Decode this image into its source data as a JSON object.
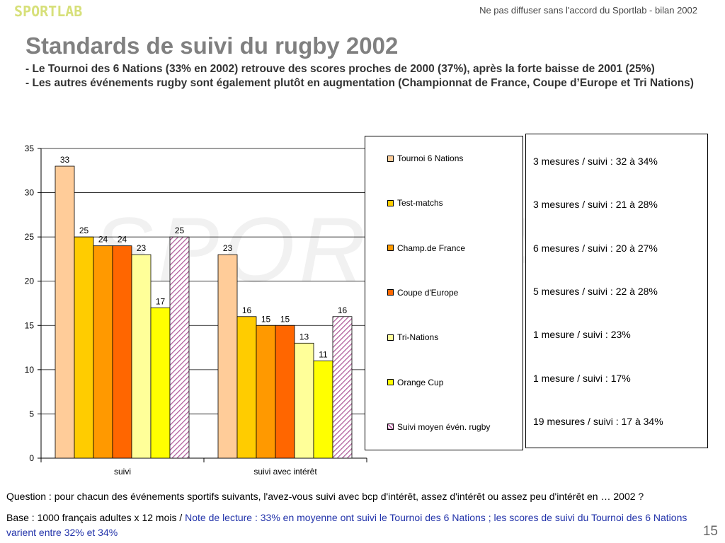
{
  "header": {
    "logo": "SPORTLAB",
    "top_note": "Ne pas diffuser sans l'accord du Sportlab - bilan 2002",
    "title": "Standards de suivi du rugby 2002",
    "subtitle": "- Le Tournoi des 6 Nations (33% en 2002) retrouve des scores proches de 2000 (37%), après la forte baisse de 2001 (25%)\n- Les autres événements rugby sont également plutôt en augmentation (Championnat de France, Coupe d’Europe et Tri Nations)"
  },
  "watermark": "SPORTLAB",
  "chart_data": {
    "type": "bar",
    "categories": [
      "suivi",
      "suivi avec intérêt"
    ],
    "series": [
      {
        "name": "Tournoi 6 Nations",
        "values": [
          33,
          23
        ],
        "color": "#ffcc99"
      },
      {
        "name": "Test-matchs",
        "values": [
          25,
          16
        ],
        "color": "#ffcc00"
      },
      {
        "name": "Champ.de France",
        "values": [
          24,
          15
        ],
        "color": "#ff9900"
      },
      {
        "name": "Coupe d'Europe",
        "values": [
          24,
          15
        ],
        "color": "#ff6600"
      },
      {
        "name": "Tri-Nations",
        "values": [
          23,
          13
        ],
        "color": "#ffff99"
      },
      {
        "name": "Orange Cup",
        "values": [
          17,
          11
        ],
        "color": "#ffff00"
      },
      {
        "name": "Suivi moyen évén. rugby",
        "values": [
          25,
          16
        ],
        "color": "#cc99cc",
        "pattern": "hatched"
      }
    ],
    "ylim": [
      0,
      35
    ],
    "yticks": [
      0,
      5,
      10,
      15,
      20,
      25,
      30,
      35
    ],
    "grid": true,
    "legend_position": "right"
  },
  "measures": [
    "3 mesures / suivi : 32 à 34%",
    "3 mesures / suivi : 21 à 28%",
    "6 mesures / suivi : 20 à 27%",
    "5 mesures / suivi : 22 à 28%",
    "1 mesure / suivi : 23%",
    "1 mesure / suivi : 17%",
    "19 mesures / suivi : 17 à 34%"
  ],
  "footer": {
    "question": "Question : pour chacun des événements sportifs suivants, l'avez-vous suivi avec bcp d'intérêt, assez d'intérêt ou assez peu d'intérêt en … 2002 ?",
    "base": "Base : 1000 français adultes x 12 mois / ",
    "note": "Note de lecture : 33% en moyenne ont suivi le Tournoi des 6 Nations ; les scores de suivi du Tournoi des 6 Nations varient entre 32% et 34%",
    "page_number": "15"
  }
}
